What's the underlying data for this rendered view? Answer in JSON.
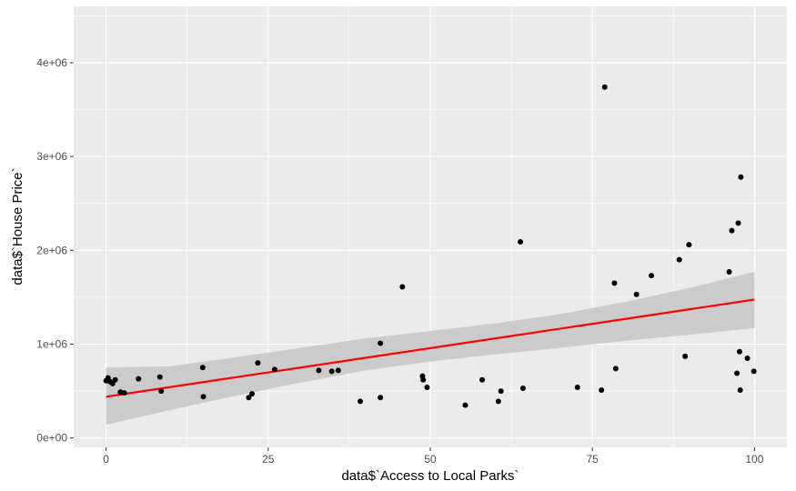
{
  "chart_data": {
    "type": "scatter",
    "xlabel": "data$`Access to Local Parks`",
    "ylabel": "data$`House Price`",
    "xlim": [
      -5,
      105
    ],
    "ylim": [
      -100000,
      4600000
    ],
    "x_ticks": [
      0,
      25,
      50,
      75,
      100
    ],
    "x_tick_labels": [
      "0",
      "25",
      "50",
      "75",
      "100"
    ],
    "y_ticks": [
      0,
      1000000,
      2000000,
      3000000,
      4000000
    ],
    "y_tick_labels": [
      "0e+00",
      "1e+06",
      "2e+06",
      "3e+06",
      "4e+06"
    ],
    "grid": true,
    "points": [
      {
        "x": 0.0,
        "y": 610000
      },
      {
        "x": 0.3,
        "y": 640000
      },
      {
        "x": 0.6,
        "y": 600000
      },
      {
        "x": 1.0,
        "y": 580000
      },
      {
        "x": 1.4,
        "y": 620000
      },
      {
        "x": 2.2,
        "y": 490000
      },
      {
        "x": 2.8,
        "y": 480000
      },
      {
        "x": 5.0,
        "y": 630000
      },
      {
        "x": 8.3,
        "y": 650000
      },
      {
        "x": 8.5,
        "y": 500000
      },
      {
        "x": 14.9,
        "y": 750000
      },
      {
        "x": 15.0,
        "y": 440000
      },
      {
        "x": 22.0,
        "y": 430000
      },
      {
        "x": 22.5,
        "y": 470000
      },
      {
        "x": 23.4,
        "y": 800000
      },
      {
        "x": 26.0,
        "y": 730000
      },
      {
        "x": 32.8,
        "y": 720000
      },
      {
        "x": 34.8,
        "y": 710000
      },
      {
        "x": 35.8,
        "y": 720000
      },
      {
        "x": 39.2,
        "y": 390000
      },
      {
        "x": 42.3,
        "y": 1010000
      },
      {
        "x": 42.3,
        "y": 430000
      },
      {
        "x": 45.7,
        "y": 1610000
      },
      {
        "x": 48.8,
        "y": 660000
      },
      {
        "x": 48.9,
        "y": 620000
      },
      {
        "x": 49.5,
        "y": 540000
      },
      {
        "x": 55.4,
        "y": 350000
      },
      {
        "x": 58.0,
        "y": 620000
      },
      {
        "x": 60.5,
        "y": 390000
      },
      {
        "x": 60.9,
        "y": 500000
      },
      {
        "x": 63.9,
        "y": 2090000
      },
      {
        "x": 64.3,
        "y": 530000
      },
      {
        "x": 72.7,
        "y": 540000
      },
      {
        "x": 76.4,
        "y": 510000
      },
      {
        "x": 76.9,
        "y": 3740000
      },
      {
        "x": 78.4,
        "y": 1650000
      },
      {
        "x": 78.6,
        "y": 740000
      },
      {
        "x": 81.8,
        "y": 1530000
      },
      {
        "x": 84.1,
        "y": 1730000
      },
      {
        "x": 88.4,
        "y": 1900000
      },
      {
        "x": 89.3,
        "y": 870000
      },
      {
        "x": 89.9,
        "y": 2060000
      },
      {
        "x": 96.1,
        "y": 1770000
      },
      {
        "x": 96.5,
        "y": 2210000
      },
      {
        "x": 97.3,
        "y": 690000
      },
      {
        "x": 97.5,
        "y": 2290000
      },
      {
        "x": 97.7,
        "y": 920000
      },
      {
        "x": 97.8,
        "y": 510000
      },
      {
        "x": 97.9,
        "y": 2780000
      },
      {
        "x": 98.9,
        "y": 850000
      },
      {
        "x": 99.9,
        "y": 710000
      }
    ],
    "fit_line": {
      "x": [
        0,
        100
      ],
      "y": [
        440000,
        1475000
      ],
      "color": "#ff0000"
    },
    "confidence_band": {
      "x": [
        0,
        10,
        20,
        30,
        40,
        50,
        60,
        70,
        80,
        90,
        100
      ],
      "lower": [
        140000,
        300000,
        450000,
        590000,
        720000,
        815000,
        890000,
        960000,
        1035000,
        1100000,
        1170000
      ],
      "upper": [
        750000,
        765000,
        860000,
        960000,
        1060000,
        1140000,
        1220000,
        1320000,
        1450000,
        1600000,
        1770000
      ],
      "color": "#c8c8c8"
    },
    "colors": {
      "panel_background": "#ebebeb",
      "grid_major": "#ffffff",
      "point": "#000000",
      "fit": "#ff0000",
      "band": "#c8c8c8"
    }
  }
}
